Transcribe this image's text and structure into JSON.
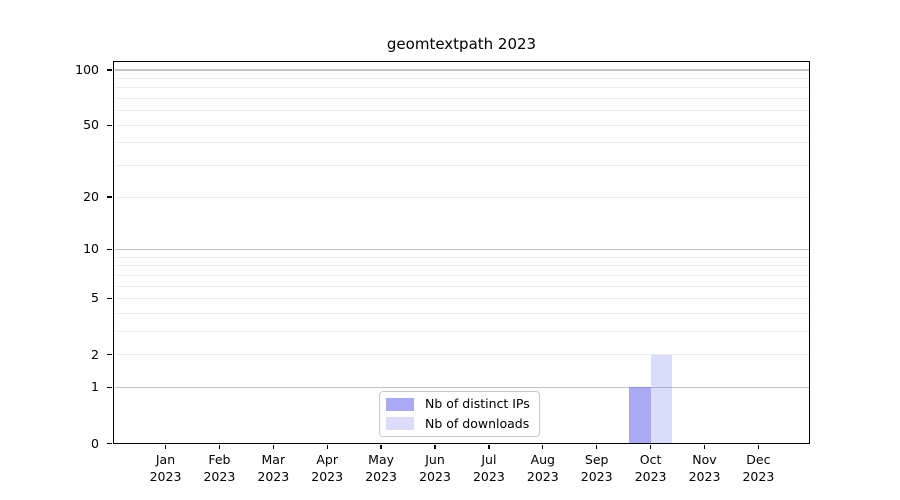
{
  "chart_data": {
    "type": "bar",
    "title": "geomtextpath 2023",
    "categories": [
      "Jan 2023",
      "Feb 2023",
      "Mar 2023",
      "Apr 2023",
      "May 2023",
      "Jun 2023",
      "Jul 2023",
      "Aug 2023",
      "Sep 2023",
      "Oct 2023",
      "Nov 2023",
      "Dec 2023"
    ],
    "series": [
      {
        "name": "Nb of distinct IPs",
        "color": "rgba(100,100,235,0.55)",
        "values": [
          0,
          0,
          0,
          0,
          0,
          0,
          0,
          0,
          0,
          1,
          0,
          0
        ]
      },
      {
        "name": "Nb of downloads",
        "color": "rgba(100,100,235,0.23)",
        "values": [
          0,
          0,
          0,
          0,
          0,
          0,
          0,
          0,
          0,
          2,
          0,
          0
        ]
      }
    ],
    "xlabel": "",
    "ylabel": "",
    "yscale": "log1p",
    "ylim": [
      0,
      100
    ],
    "yticks": [
      0,
      1,
      2,
      5,
      10,
      20,
      50,
      100
    ],
    "major_gridlines": [
      1,
      10,
      100
    ],
    "minor_gridlines": [
      2,
      3,
      4,
      5,
      6,
      7,
      8,
      9,
      20,
      30,
      40,
      50,
      60,
      70,
      80,
      90
    ],
    "grid": "on",
    "legend_position": "lower center",
    "colors": {
      "major_grid": "#c2c2c2",
      "minor_grid": "#ebebeb",
      "axis": "#000000",
      "background": "#ffffff",
      "text": "#000000"
    }
  }
}
